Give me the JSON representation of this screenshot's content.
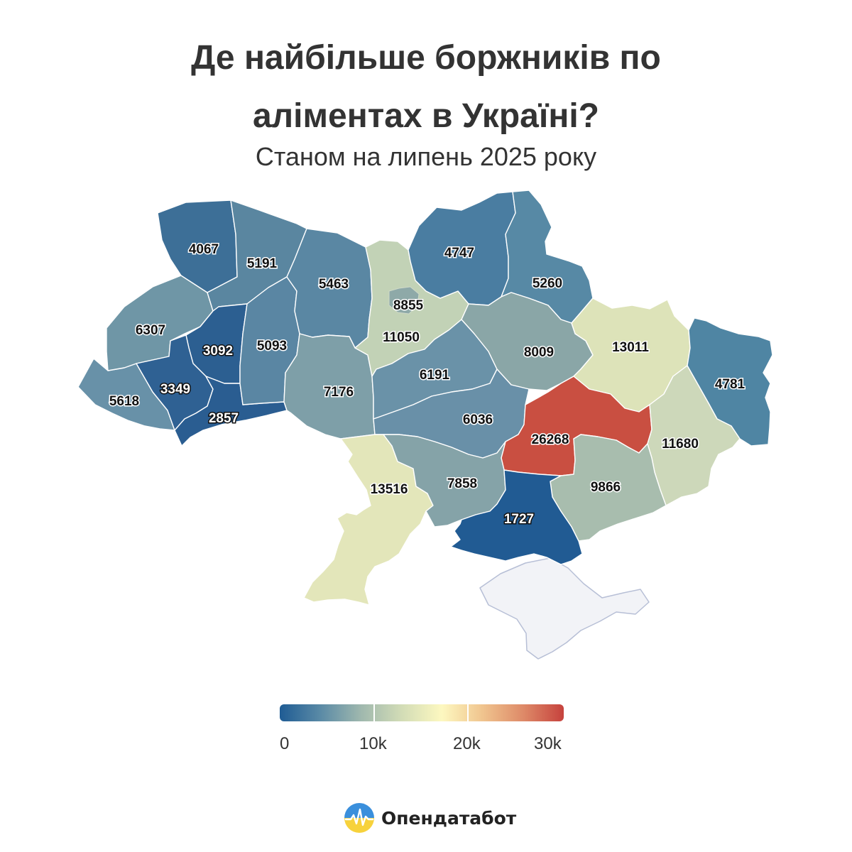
{
  "title": {
    "line1": "Де найбільше боржників по",
    "line2": "аліментах в Україні?"
  },
  "subtitle": "Станом на липень 2025 року",
  "map": {
    "regions": [
      {
        "id": "volyn",
        "value": "4067",
        "color": "#3d6f97"
      },
      {
        "id": "rivne",
        "value": "5191",
        "color": "#5a86a0"
      },
      {
        "id": "zhytomyr",
        "value": "5463",
        "color": "#5a87a3"
      },
      {
        "id": "kyiv-region",
        "value": "11050",
        "color": "#c2d2b6"
      },
      {
        "id": "kyiv-city",
        "value": "8855",
        "color": "#8ea9a8"
      },
      {
        "id": "chernihiv",
        "value": "4747",
        "color": "#4a7da1"
      },
      {
        "id": "sumy",
        "value": "5260",
        "color": "#5789a5"
      },
      {
        "id": "lviv",
        "value": "6307",
        "color": "#6f96a6"
      },
      {
        "id": "ternopil",
        "value": "3092",
        "color": "#2c5f91"
      },
      {
        "id": "khmelnytskyi",
        "value": "5093",
        "color": "#5a86a3"
      },
      {
        "id": "zakarpattia",
        "value": "5618",
        "color": "#6891a8"
      },
      {
        "id": "ivano-frankivsk",
        "value": "3349",
        "color": "#2f6193"
      },
      {
        "id": "chernivtsi",
        "value": "2857",
        "color": "#2a5d91"
      },
      {
        "id": "vinnytsia",
        "value": "7176",
        "color": "#7e9fa8"
      },
      {
        "id": "cherkasy",
        "value": "6191",
        "color": "#6a92a8"
      },
      {
        "id": "poltava",
        "value": "8009",
        "color": "#8aa6a7"
      },
      {
        "id": "kharkiv",
        "value": "13011",
        "color": "#dde3b9"
      },
      {
        "id": "luhansk",
        "value": "4781",
        "color": "#4f85a3"
      },
      {
        "id": "kirovohrad",
        "value": "6036",
        "color": "#6990a8"
      },
      {
        "id": "dnipro",
        "value": "26268",
        "color": "#c94f41"
      },
      {
        "id": "donetsk",
        "value": "11680",
        "color": "#cdd8ba"
      },
      {
        "id": "odesa",
        "value": "13516",
        "color": "#e3e6ba"
      },
      {
        "id": "mykolaiv",
        "value": "7858",
        "color": "#85a3a8"
      },
      {
        "id": "zaporizhzhia",
        "value": "9866",
        "color": "#a8bdae"
      },
      {
        "id": "kherson",
        "value": "1727",
        "color": "#215b93"
      },
      {
        "id": "crimea",
        "value": "",
        "color": "#f2f3f7"
      }
    ]
  },
  "legend": {
    "ticks": [
      "0",
      "10k",
      "20k",
      "30k"
    ],
    "colors": [
      "#1f5c94",
      "#5a8aa6",
      "#9fb8ae",
      "#d2dcb6",
      "#fdf8c0",
      "#f0c48e",
      "#de8a68",
      "#c6423d"
    ]
  },
  "brand": {
    "name": "Опендатабот"
  }
}
